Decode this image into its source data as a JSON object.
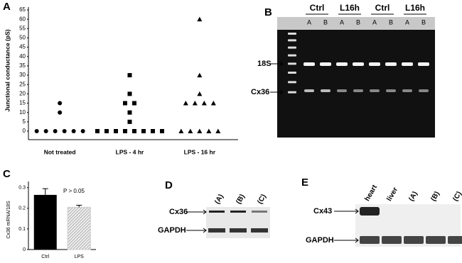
{
  "panels": [
    "A",
    "B",
    "C",
    "D",
    "E"
  ],
  "chart_data": [
    {
      "type": "strip",
      "ylabel": "Junctional conductance (pS)",
      "categories": [
        "Not treated",
        "LPS - 4 hr",
        "LPS - 16 hr"
      ],
      "markers": [
        "circle",
        "square",
        "triangle"
      ],
      "values": [
        [
          0,
          0,
          0,
          0,
          0,
          0,
          10,
          15
        ],
        [
          0,
          0,
          0,
          0,
          0,
          0,
          0,
          0,
          5,
          10,
          15,
          15,
          20,
          30
        ],
        [
          0,
          0,
          0,
          0,
          0,
          15,
          15,
          15,
          15,
          20,
          30,
          60
        ]
      ],
      "color": "#000000",
      "ylim": [
        0,
        65
      ],
      "yticks": [
        0,
        5,
        10,
        15,
        20,
        25,
        30,
        35,
        40,
        45,
        50,
        55,
        60,
        65
      ]
    },
    {
      "type": "bar",
      "ylabel": "Cx36 mRNA/18S",
      "annotation": "P > 0.05",
      "categories": [
        "Ctrl",
        "LPS"
      ],
      "values": [
        0.265,
        0.205
      ],
      "errors": [
        0.03,
        0.01
      ],
      "colors": [
        "#000000",
        "#cccccc"
      ],
      "ylim": [
        0,
        0.33
      ],
      "yticks": [
        0,
        0.1,
        0.2,
        0.3
      ]
    }
  ],
  "gel_b": {
    "lane_groups": [
      "Ctrl",
      "L16h",
      "Ctrl",
      "L16h"
    ],
    "lanes": [
      "A",
      "B",
      "A",
      "B",
      "A",
      "B",
      "A",
      "B"
    ],
    "bands": [
      "18S",
      "Cx36"
    ]
  },
  "gel_d": {
    "lanes": [
      "(A)",
      "(B)",
      "(C)"
    ],
    "bands": [
      "Cx36",
      "GAPDH"
    ]
  },
  "gel_e": {
    "lanes": [
      "heart",
      "liver",
      "(A)",
      "(B)",
      "(C)"
    ],
    "bands": [
      "Cx43",
      "GAPDH"
    ]
  }
}
